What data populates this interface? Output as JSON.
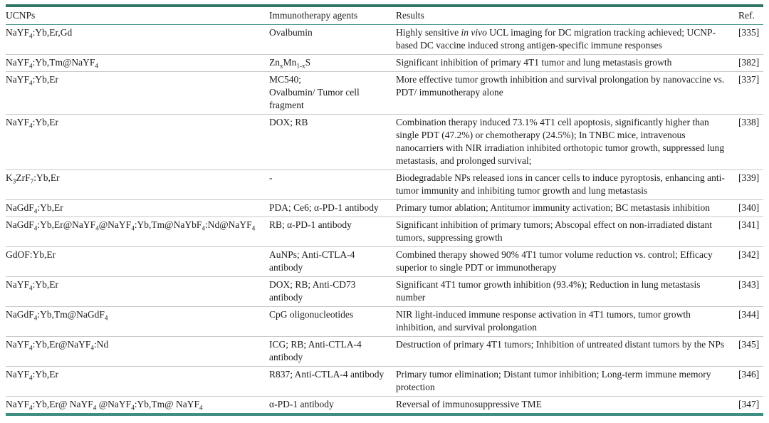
{
  "colors": {
    "rule_top": "#2f7568",
    "rule_header": "#4a968a",
    "rule_bottom": "#3f8e81",
    "row_divider": "#c9c9c9",
    "text": "#1b1b1b",
    "background": "#ffffff"
  },
  "table": {
    "columns": [
      "UCNPs",
      "Immunotherapy agents",
      "Results",
      "Ref."
    ],
    "rows": [
      {
        "ucnp": "NaYF_4_:Yb,Er,Gd",
        "agents": "Ovalbumin",
        "results": "Highly sensitive *in vivo* UCL imaging for DC migration tracking achieved; UCNP-based DC vaccine induced strong antigen-specific immune responses",
        "ref": "[335]"
      },
      {
        "ucnp": "NaYF_4_:Yb,Tm@NaYF_4_",
        "agents": "Zn_x_Mn_1-x_S",
        "results": "Significant inhibition of primary 4T1 tumor and lung metastasis growth",
        "ref": "[382]"
      },
      {
        "ucnp": "NaYF_4_:Yb,Er",
        "agents": "MC540;\nOvalbumin/ Tumor cell fragment",
        "results": "More effective tumor growth inhibition and survival prolongation by nanovaccine vs. PDT/ immunotherapy alone",
        "ref": "[337]"
      },
      {
        "ucnp": "NaYF_4_:Yb,Er",
        "agents": "DOX; RB",
        "results": "Combination therapy induced 73.1% 4T1 cell apoptosis, significantly higher than single PDT (47.2%) or chemotherapy (24.5%); In TNBC mice, intravenous nanocarriers with NIR irradiation inhibited orthotopic tumor growth, suppressed lung metastasis, and prolonged survival;",
        "ref": "[338]"
      },
      {
        "ucnp": "K_3_ZrF_7_:Yb,Er",
        "agents": "-",
        "results": "Biodegradable NPs released ions in cancer cells to induce pyroptosis, enhancing anti-tumor immunity and inhibiting tumor growth and lung metastasis",
        "ref": "[339]"
      },
      {
        "ucnp": "NaGdF_4_:Yb,Er",
        "agents": "PDA; Ce6; α-PD-1 antibody",
        "results": "Primary tumor ablation; Antitumor immunity activation; BC metastasis inhibition",
        "ref": "[340]"
      },
      {
        "ucnp": "NaGdF_4_:Yb,Er@NaYF_4_@NaYF_4_:Yb,Tm@NaYbF_4_:Nd@NaYF_4_",
        "agents": "RB; α-PD-1 antibody",
        "results": "Significant inhibition of primary tumors; Abscopal effect on non-irradiated distant tumors, suppressing growth",
        "ref": "[341]"
      },
      {
        "ucnp": "GdOF:Yb,Er",
        "agents": "AuNPs; Anti-CTLA-4 antibody",
        "results": "Combined therapy showed 90% 4T1 tumor volume reduction vs. control; Efficacy superior to single PDT or immunotherapy",
        "ref": "[342]"
      },
      {
        "ucnp": "NaYF_4_:Yb,Er",
        "agents": "DOX; RB; Anti-CD73 antibody",
        "results": "Significant 4T1 tumor growth inhibition (93.4%); Reduction in lung metastasis number",
        "ref": "[343]"
      },
      {
        "ucnp": "NaGdF_4_:Yb,Tm@NaGdF_4_",
        "agents": "CpG oligonucleotides",
        "results": "NIR light-induced immune response activation in 4T1 tumors, tumor growth inhibition, and survival prolongation",
        "ref": "[344]"
      },
      {
        "ucnp": "NaYF_4_:Yb,Er@NaYF_4_:Nd",
        "agents": "ICG; RB; Anti-CTLA-4 antibody",
        "results": "Destruction of primary 4T1 tumors; Inhibition of untreated distant tumors by the NPs",
        "ref": "[345]"
      },
      {
        "ucnp": "NaYF_4_:Yb,Er",
        "agents": "R837; Anti-CTLA-4 antibody",
        "results": "Primary tumor elimination; Distant tumor inhibition; Long-term immune memory protection",
        "ref": "[346]"
      },
      {
        "ucnp": "NaYF_4_:Yb,Er@ NaYF_4_ @NaYF_4_:Yb,Tm@ NaYF_4_",
        "agents": "α-PD-1 antibody",
        "results": "Reversal of immunosuppressive TME",
        "ref": "[347]"
      }
    ]
  }
}
